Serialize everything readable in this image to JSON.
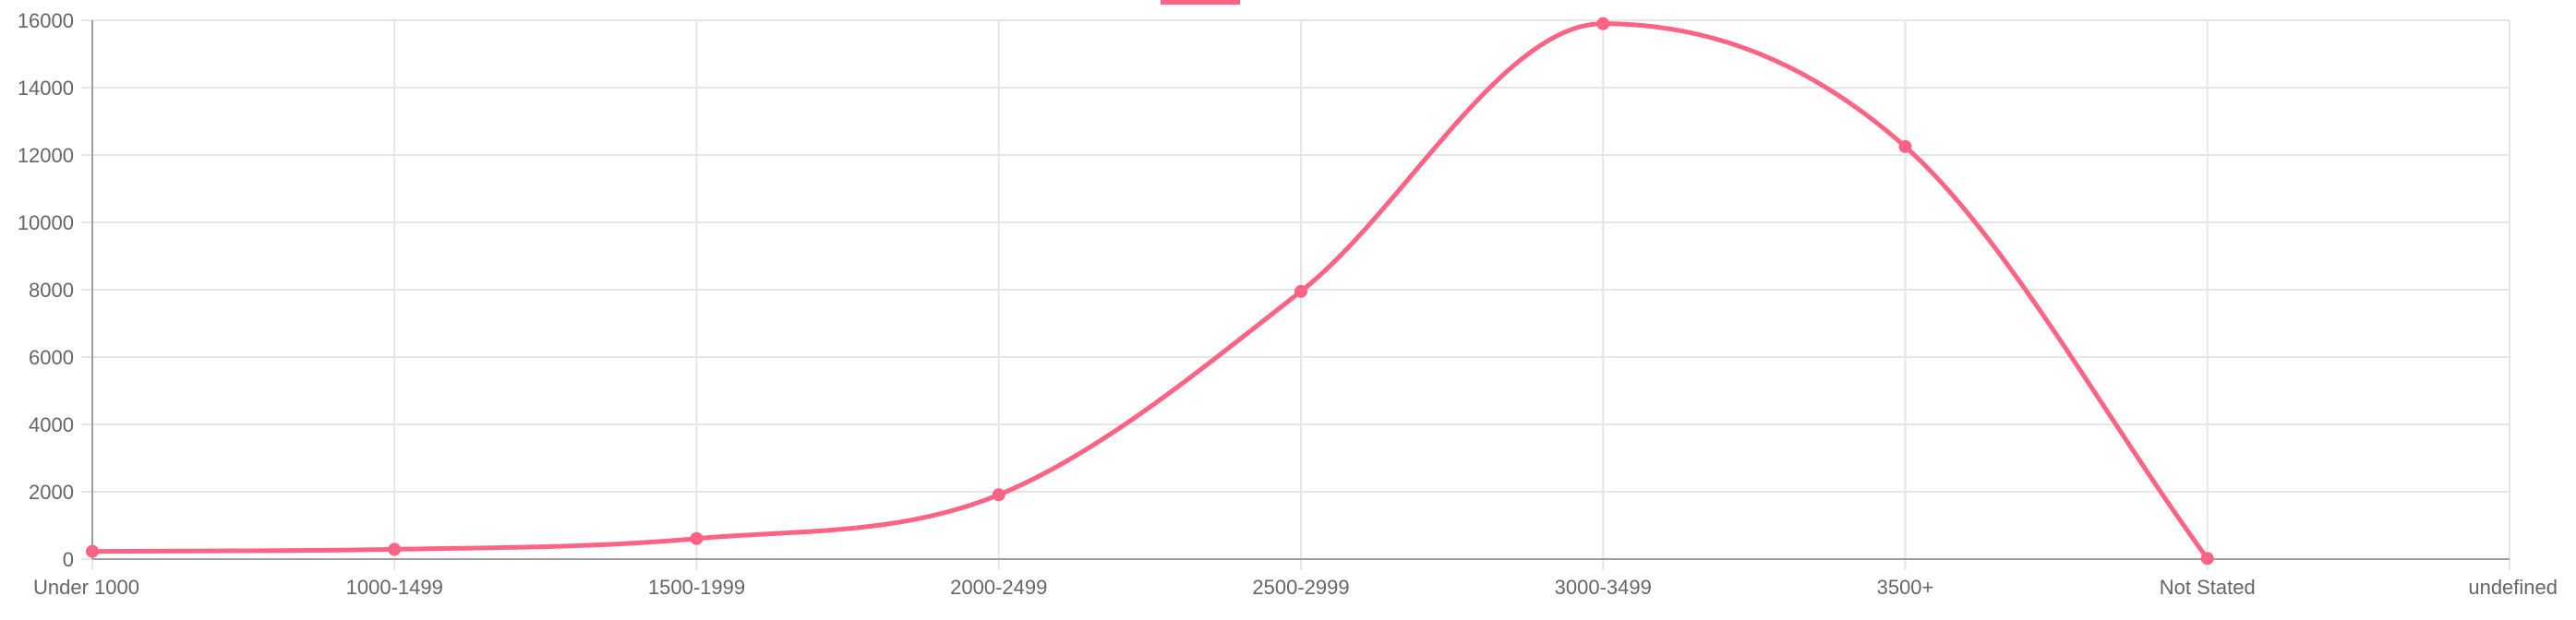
{
  "chart_data": {
    "type": "line",
    "title": "",
    "xlabel": "",
    "ylabel": "",
    "categories": [
      "Under 1000",
      "1000-1499",
      "1500-1999",
      "2000-2499",
      "2500-2999",
      "3000-3499",
      "3500+",
      "Not Stated",
      "undefined"
    ],
    "series": [
      {
        "name": "",
        "color": "#ff6384",
        "values": [
          230,
          290,
          610,
          1910,
          7950,
          15900,
          12250,
          20,
          null
        ]
      }
    ],
    "ylim": [
      0,
      16000
    ],
    "yticks": [
      0,
      2000,
      4000,
      6000,
      8000,
      10000,
      12000,
      14000,
      16000
    ],
    "grid": true,
    "legend": "top-center"
  }
}
